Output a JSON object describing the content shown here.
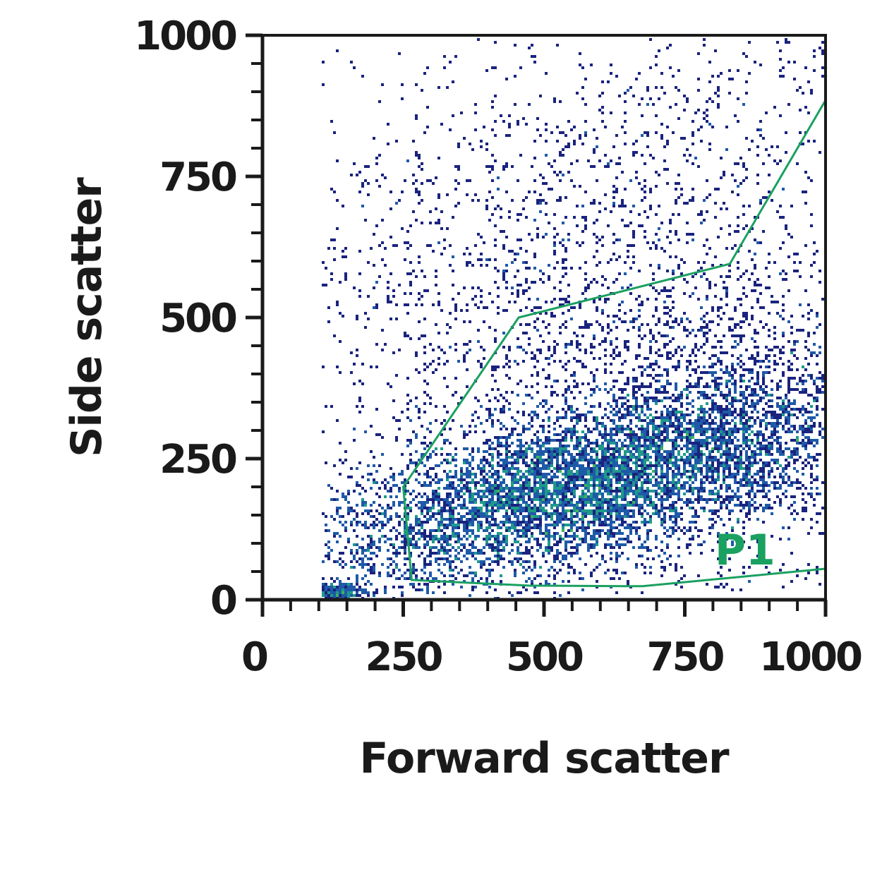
{
  "chart_data": {
    "type": "scatter",
    "title": "",
    "xlabel": "Forward scatter",
    "ylabel": "Side scatter",
    "xlim": [
      0,
      1000
    ],
    "ylim": [
      0,
      1000
    ],
    "x_ticks": [
      0,
      250,
      500,
      750,
      1000
    ],
    "y_ticks": [
      0,
      250,
      500,
      750,
      1000
    ],
    "x_minor_step": 50,
    "y_minor_step": 50,
    "grid": false,
    "density_colors": [
      "#1a237e",
      "#1e5aa8",
      "#1f9a8a",
      "#3fb45a",
      "#9ccc2a",
      "#d6dc1c"
    ],
    "populations": [
      {
        "center": [
          560,
          200
        ],
        "spread": [
          230,
          65
        ],
        "rotation_deg": 14,
        "share": 0.7
      },
      {
        "center": [
          820,
          330
        ],
        "spread": [
          160,
          130
        ],
        "rotation_deg": 10,
        "share": 0.14
      },
      {
        "center": [
          430,
          520
        ],
        "spread": [
          230,
          240
        ],
        "rotation_deg": 35,
        "share": 0.1
      },
      {
        "center": [
          135,
          12
        ],
        "spread": [
          25,
          10
        ],
        "rotation_deg": 0,
        "share": 0.02
      },
      {
        "center": [
          700,
          750
        ],
        "spread": [
          260,
          170
        ],
        "rotation_deg": 25,
        "share": 0.04
      }
    ],
    "gate": {
      "name": "P1",
      "color": "#1aa060",
      "vertices": [
        [
          1000,
          885
        ],
        [
          830,
          595
        ],
        [
          455,
          500
        ],
        [
          250,
          200
        ],
        [
          265,
          35
        ],
        [
          475,
          25
        ],
        [
          675,
          24
        ],
        [
          1000,
          55
        ]
      ]
    }
  }
}
